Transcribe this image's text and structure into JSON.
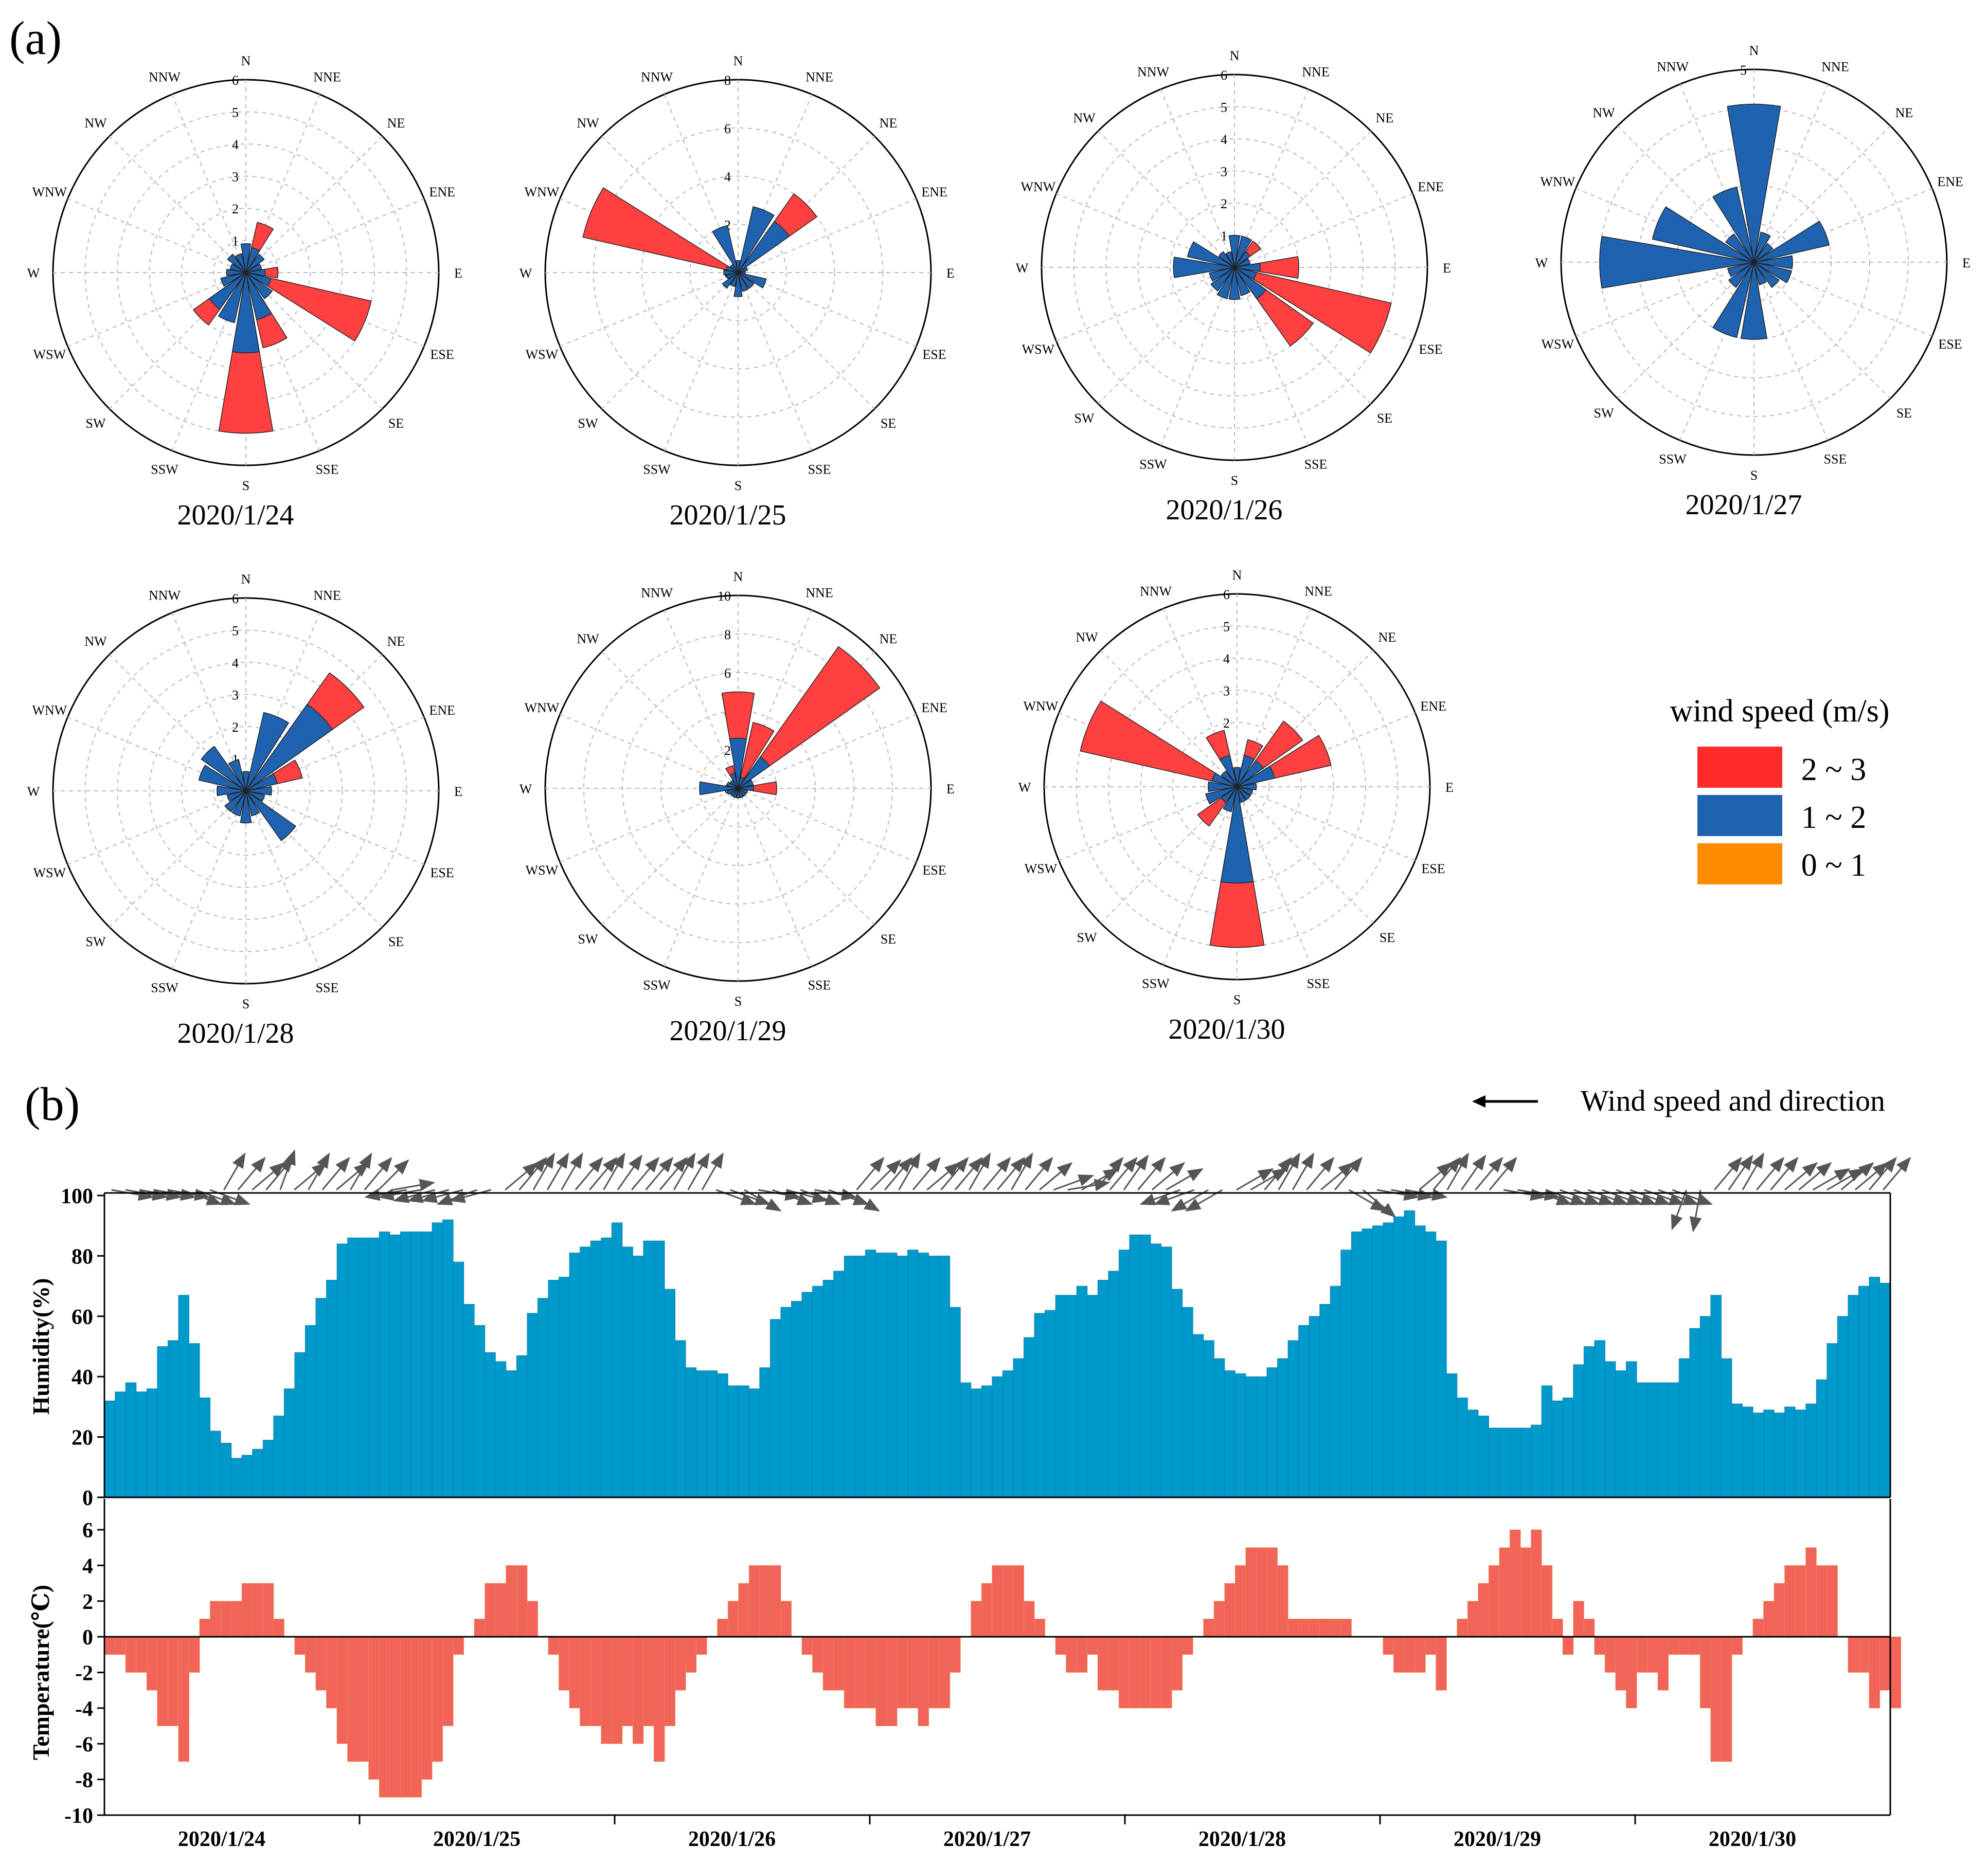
{
  "panel_a_label": "(a)",
  "panel_b_label": "(b)",
  "direction_labels": [
    "N",
    "NNE",
    "NE",
    "ENE",
    "E",
    "ESE",
    "SE",
    "SSE",
    "S",
    "SSW",
    "SW",
    "WSW",
    "W",
    "WNW",
    "NW",
    "NNW"
  ],
  "legend": {
    "title": "wind speed (m/s)",
    "items": [
      {
        "label": "2 ~ 3",
        "color": "#ff2a2a"
      },
      {
        "label": "1 ~ 2",
        "color": "#1f63b0"
      },
      {
        "label": "0 ~ 1",
        "color": "#ff8c00"
      }
    ]
  },
  "wind_arrow_legend": "Wind speed and direction",
  "colors": {
    "red": "#ff4040",
    "blue": "#1f63b0",
    "humidity": "#0099cc",
    "temperature": "#f2645a",
    "arrow": "#555555",
    "grid": "#b8b8b8"
  },
  "chart_data": [
    {
      "type": "wind-rose",
      "date": "2020/1/24",
      "rmax": 6,
      "ticks": [
        "0",
        "1",
        "2",
        "3",
        "4",
        "5",
        "6"
      ],
      "directions": [
        "N",
        "NNE",
        "NE",
        "ENE",
        "E",
        "ESE",
        "SE",
        "SSE",
        "S",
        "SSW",
        "SW",
        "WSW",
        "W",
        "WNW",
        "NW",
        "NNW"
      ],
      "series": [
        {
          "name": "1 ~ 2",
          "color": "#1f63b0",
          "values": [
            0.9,
            0.8,
            0.7,
            0.5,
            0.6,
            0.8,
            1.0,
            1.5,
            2.5,
            1.6,
            1.4,
            0.8,
            0.6,
            0.5,
            0.7,
            0.6
          ]
        },
        {
          "name": "2 ~ 3",
          "color": "#ff4040",
          "values": [
            0,
            1.6,
            0,
            0,
            1.0,
            4.0,
            0,
            2.4,
            5.0,
            0,
            2.0,
            0,
            0,
            0,
            0,
            0
          ]
        }
      ]
    },
    {
      "type": "wind-rose",
      "date": "2020/1/25",
      "rmax": 8,
      "ticks": [
        "0",
        "2",
        "4",
        "6",
        "8"
      ],
      "directions": [
        "N",
        "NNE",
        "NE",
        "ENE",
        "E",
        "ESE",
        "SE",
        "SSE",
        "S",
        "SSW",
        "SW",
        "WSW",
        "W",
        "WNW",
        "NW",
        "NNW"
      ],
      "series": [
        {
          "name": "1 ~ 2",
          "color": "#1f63b0",
          "values": [
            0.5,
            2.8,
            2.6,
            0.4,
            0.3,
            1.2,
            0.8,
            0.8,
            1.0,
            0.6,
            0.8,
            0.5,
            0.6,
            0.5,
            0.4,
            2.0
          ]
        },
        {
          "name": "2 ~ 3",
          "color": "#ff4040",
          "values": [
            0,
            0,
            4.0,
            0,
            0,
            0,
            0,
            0,
            0,
            0,
            0,
            0,
            0,
            6.6,
            0,
            0
          ]
        }
      ]
    },
    {
      "type": "wind-rose",
      "date": "2020/1/26",
      "rmax": 6,
      "ticks": [
        "0",
        "1",
        "2",
        "3",
        "4",
        "5",
        "6"
      ],
      "directions": [
        "N",
        "NNE",
        "NE",
        "ENE",
        "E",
        "ESE",
        "SE",
        "SSE",
        "S",
        "SSW",
        "SW",
        "WSW",
        "W",
        "WNW",
        "NW",
        "NNW"
      ],
      "series": [
        {
          "name": "1 ~ 2",
          "color": "#1f63b0",
          "values": [
            1.0,
            1.0,
            0.6,
            0.5,
            0.8,
            0.7,
            1.2,
            0.9,
            1.0,
            1.0,
            0.9,
            0.8,
            1.9,
            1.5,
            0.6,
            0.5
          ]
        },
        {
          "name": "2 ~ 3",
          "color": "#ff4040",
          "values": [
            0,
            0,
            1.0,
            0,
            2.0,
            5.0,
            3.0,
            0,
            0,
            0,
            0,
            0,
            0,
            0,
            0,
            0
          ]
        }
      ]
    },
    {
      "type": "wind-rose",
      "date": "2020/1/27",
      "rmax": 5,
      "ticks": [
        "0",
        "1",
        "2",
        "3",
        "4",
        "5"
      ],
      "directions": [
        "N",
        "NNE",
        "NE",
        "ENE",
        "E",
        "ESE",
        "SE",
        "SSE",
        "S",
        "SSW",
        "SW",
        "WSW",
        "W",
        "WNW",
        "NW",
        "NNW"
      ],
      "series": [
        {
          "name": "1 ~ 2",
          "color": "#1f63b0",
          "values": [
            4.1,
            0.8,
            0.6,
            2.0,
            1.0,
            1.0,
            0.8,
            0.6,
            2.0,
            2.0,
            0.8,
            0.7,
            4.0,
            2.7,
            0.9,
            2.0
          ]
        },
        {
          "name": "2 ~ 3",
          "color": "#ff4040",
          "values": [
            0,
            0,
            0,
            0,
            0,
            0,
            0,
            0,
            0,
            0,
            0,
            0,
            0,
            0,
            0,
            0
          ]
        }
      ]
    },
    {
      "type": "wind-rose",
      "date": "2020/1/28",
      "rmax": 6,
      "ticks": [
        "0",
        "1",
        "2",
        "3",
        "4",
        "5",
        "6"
      ],
      "directions": [
        "N",
        "NNE",
        "NE",
        "ENE",
        "E",
        "ESE",
        "SE",
        "SSE",
        "S",
        "SSW",
        "SW",
        "WSW",
        "W",
        "WNW",
        "NW",
        "NNW"
      ],
      "series": [
        {
          "name": "1 ~ 2",
          "color": "#1f63b0",
          "values": [
            0.6,
            2.5,
            3.3,
            1.0,
            0.8,
            0.6,
            1.9,
            0.8,
            1.0,
            0.8,
            0.8,
            0.6,
            0.9,
            1.5,
            1.7,
            1.0
          ]
        },
        {
          "name": "2 ~ 3",
          "color": "#ff4040",
          "values": [
            0,
            0,
            4.5,
            1.8,
            0,
            0,
            0,
            0,
            0,
            0,
            0,
            0,
            0,
            0,
            0,
            0
          ]
        }
      ]
    },
    {
      "type": "wind-rose",
      "date": "2020/1/29",
      "rmax": 10,
      "ticks": [
        "0",
        "2",
        "4",
        "6",
        "8",
        "10"
      ],
      "directions": [
        "N",
        "NNE",
        "NE",
        "ENE",
        "E",
        "ESE",
        "SE",
        "SSE",
        "S",
        "SSW",
        "SW",
        "WSW",
        "W",
        "WNW",
        "NW",
        "NNW"
      ],
      "series": [
        {
          "name": "1 ~ 2",
          "color": "#1f63b0",
          "values": [
            2.6,
            0.6,
            2.0,
            0.8,
            0.8,
            0.5,
            0.5,
            0.5,
            0.5,
            0.5,
            0.5,
            0.6,
            2.0,
            0.6,
            0.5,
            0.8
          ]
        },
        {
          "name": "2 ~ 3",
          "color": "#ff4040",
          "values": [
            5.0,
            3.5,
            9.0,
            0,
            2.0,
            0,
            0,
            0,
            0,
            0,
            0,
            0,
            0,
            0,
            0,
            1.2
          ]
        }
      ]
    },
    {
      "type": "wind-rose",
      "date": "2020/1/30",
      "rmax": 6,
      "ticks": [
        "0",
        "1",
        "2",
        "3",
        "4",
        "5",
        "6"
      ],
      "directions": [
        "N",
        "NNE",
        "NE",
        "ENE",
        "E",
        "ESE",
        "SE",
        "SSE",
        "S",
        "SSW",
        "SW",
        "WSW",
        "W",
        "WNW",
        "NW",
        "NNW"
      ],
      "series": [
        {
          "name": "1 ~ 2",
          "color": "#1f63b0",
          "values": [
            0.6,
            1.0,
            1.0,
            1.2,
            0.6,
            0.5,
            0.5,
            0.5,
            3.0,
            0.8,
            0.6,
            1.0,
            0.9,
            0.8,
            0.6,
            1.0
          ]
        },
        {
          "name": "2 ~ 3",
          "color": "#ff4040",
          "values": [
            0,
            1.5,
            2.5,
            3.0,
            0,
            0,
            0,
            0,
            5.0,
            0,
            1.5,
            0,
            0,
            5.0,
            0,
            1.8
          ]
        }
      ]
    },
    {
      "type": "bar",
      "name": "humidity",
      "ylabel": "Humidity(%)",
      "ylim": [
        0,
        100
      ],
      "yticks": [
        "0",
        "20",
        "40",
        "60",
        "80",
        "100"
      ],
      "values": [
        32,
        35,
        38,
        35,
        36,
        50,
        52,
        67,
        51,
        33,
        22,
        18,
        13,
        14,
        16,
        19,
        27,
        36,
        48,
        57,
        66,
        72,
        84,
        86,
        86,
        86,
        88,
        87,
        88,
        88,
        88,
        91,
        92,
        78,
        64,
        57,
        48,
        45,
        42,
        47,
        61,
        66,
        72,
        73,
        81,
        83,
        85,
        86,
        91,
        83,
        80,
        85,
        85,
        69,
        52,
        43,
        42,
        42,
        41,
        37,
        37,
        36,
        43,
        59,
        63,
        65,
        68,
        70,
        72,
        75,
        80,
        80,
        82,
        81,
        81,
        80,
        82,
        81,
        80,
        80,
        63,
        38,
        36,
        37,
        40,
        42,
        46,
        53,
        61,
        62,
        67,
        67,
        70,
        67,
        72,
        75,
        82,
        87,
        87,
        84,
        83,
        69,
        63,
        54,
        52,
        46,
        42,
        41,
        40,
        40,
        43,
        46,
        52,
        57,
        60,
        64,
        70,
        82,
        88,
        89,
        90,
        91,
        93,
        95,
        90,
        88,
        85,
        41,
        33,
        29,
        27,
        23,
        23,
        23,
        23,
        24,
        37,
        32,
        33,
        44,
        50,
        52,
        45,
        42,
        45,
        38,
        38,
        38,
        38,
        46,
        56,
        60,
        67,
        46,
        31,
        30,
        28,
        29,
        28,
        30,
        29,
        31,
        39,
        51,
        60,
        67,
        70,
        73,
        71
      ]
    },
    {
      "type": "bar",
      "name": "temperature",
      "ylabel": "Temperature(℃)",
      "ylim": [
        -10,
        6
      ],
      "yticks": [
        "6",
        "4",
        "2",
        "0",
        "-2",
        "-4",
        "-6",
        "-8",
        "-10"
      ],
      "values": [
        -1,
        -1,
        -2,
        -2,
        -3,
        -5,
        -5,
        -7,
        -2,
        1,
        2,
        2,
        2,
        3,
        3,
        3,
        1,
        0,
        -1,
        -2,
        -3,
        -4,
        -6,
        -7,
        -7,
        -8,
        -9,
        -9,
        -9,
        -9,
        -8,
        -7,
        -5,
        -1,
        0,
        1,
        3,
        3,
        4,
        4,
        2,
        0,
        -1,
        -3,
        -4,
        -5,
        -5,
        -6,
        -6,
        -5,
        -6,
        -5,
        -7,
        -5,
        -3,
        -2,
        -1,
        0,
        1,
        2,
        3,
        4,
        4,
        4,
        2,
        0,
        -1,
        -2,
        -3,
        -3,
        -4,
        -4,
        -4,
        -5,
        -5,
        -4,
        -4,
        -5,
        -4,
        -4,
        -2,
        0,
        2,
        3,
        4,
        4,
        4,
        2,
        1,
        0,
        -1,
        -2,
        -2,
        -1,
        -3,
        -3,
        -4,
        -4,
        -4,
        -4,
        -4,
        -3,
        -1,
        0,
        1,
        2,
        3,
        4,
        5,
        5,
        5,
        4,
        1,
        1,
        1,
        1,
        1,
        1,
        0,
        0,
        0,
        -1,
        -2,
        -2,
        -2,
        -1,
        -3,
        0,
        1,
        2,
        3,
        4,
        5,
        6,
        5,
        6,
        4,
        1,
        -1,
        2,
        1,
        -1,
        -2,
        -3,
        -4,
        -2,
        -2,
        -3,
        -1,
        -1,
        -1,
        -4,
        -7,
        -7,
        -1,
        0,
        1,
        2,
        3,
        4,
        4,
        5,
        4,
        4,
        0,
        -2,
        -2,
        -4,
        -3,
        -4
      ]
    }
  ],
  "wind_arrows": {
    "comment": "direction each arrow points, degrees (0 = north, clockwise), one per group of hours",
    "angles": [
      100,
      100,
      100,
      100,
      100,
      110,
      110,
      110,
      30,
      40,
      50,
      40,
      20,
      50,
      30,
      40,
      50,
      30,
      40,
      45,
      80,
      260,
      260,
      255,
      255,
      255,
      250,
      255,
      50,
      40,
      30,
      30,
      30,
      40,
      40,
      30,
      35,
      40,
      40,
      40,
      30,
      30,
      30,
      110,
      110,
      120,
      100,
      110,
      105,
      110,
      100,
      110,
      120,
      40,
      45,
      40,
      30,
      40,
      50,
      40,
      40,
      30,
      40,
      40,
      30,
      40,
      50,
      70,
      80,
      60,
      40,
      40,
      35,
      40,
      50,
      60,
      250,
      250,
      240,
      240,
      60,
      60,
      40,
      30,
      30,
      40,
      50,
      40,
      120,
      130,
      100,
      100,
      100,
      50,
      40,
      30,
      35,
      40,
      40,
      100,
      100,
      110,
      110,
      110,
      110,
      110,
      110,
      110,
      110,
      110,
      110,
      110,
      200,
      190,
      40,
      35,
      30,
      40,
      40,
      50,
      50,
      60,
      60,
      50,
      50,
      40,
      40
    ]
  },
  "x_date_labels": [
    "2020/1/24",
    "2020/1/25",
    "2020/1/26",
    "2020/1/27",
    "2020/1/28",
    "2020/1/29",
    "2020/1/30"
  ]
}
